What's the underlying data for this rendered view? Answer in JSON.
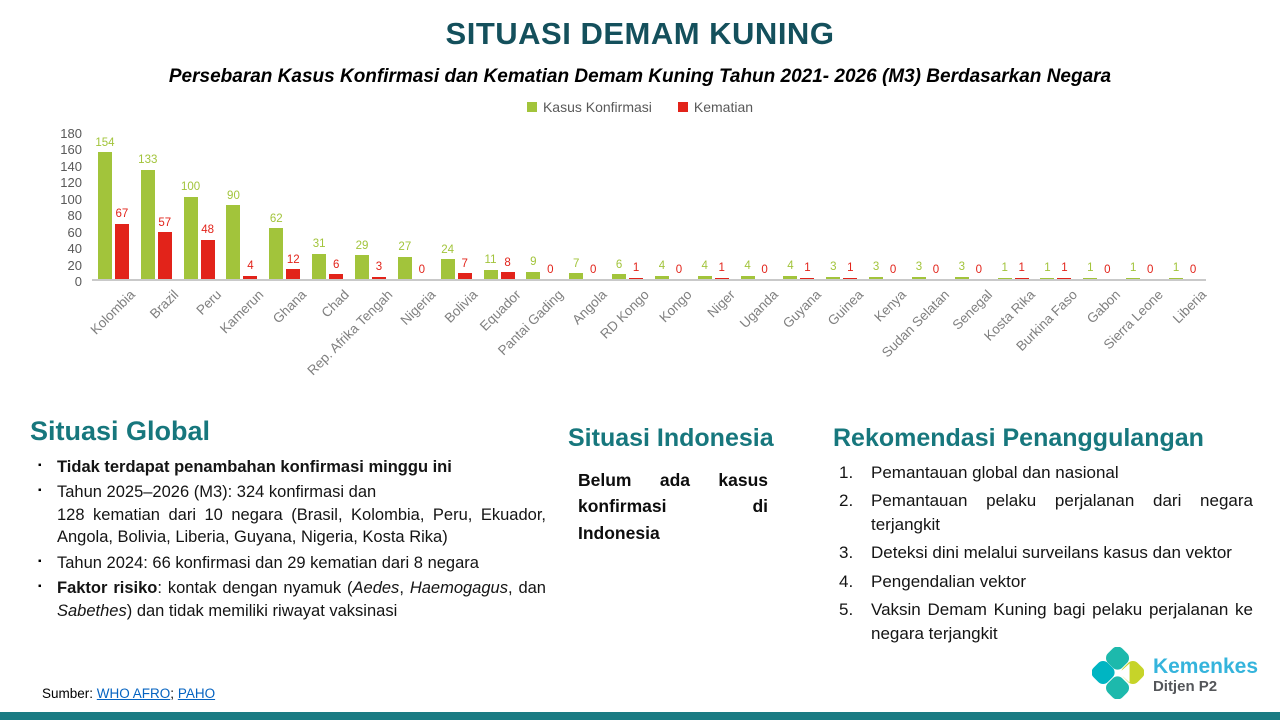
{
  "slide": {
    "title": "SITUASI DEMAM KUNING",
    "subtitle": "Persebaran Kasus Konfirmasi dan Kematian Demam Kuning Tahun 2021- 2026 (M3) Berdasarkan Negara"
  },
  "chart_data": {
    "type": "bar",
    "title": "Persebaran Kasus Konfirmasi dan Kematian Demam Kuning Tahun 2021- 2026 (M3) Berdasarkan Negara",
    "categories": [
      "Kolombia",
      "Brazil",
      "Peru",
      "Kamerun",
      "Ghana",
      "Chad",
      "Rep. Afrika Tengah",
      "Nigeria",
      "Bolivia",
      "Equador",
      "Pantai Gading",
      "Angola",
      "RD Kongo",
      "Kongo",
      "Niger",
      "Uganda",
      "Guyana",
      "Guinea",
      "Kenya",
      "Sudan Selatan",
      "Senegal",
      "Kosta Rika",
      "Burkina Faso",
      "Gabon",
      "Sierra Leone",
      "Liberia"
    ],
    "series": [
      {
        "name": "Kasus Konfirmasi",
        "color": "#a2c43b",
        "values": [
          154,
          133,
          100,
          90,
          62,
          31,
          29,
          27,
          24,
          11,
          9,
          7,
          6,
          4,
          4,
          4,
          4,
          3,
          3,
          3,
          3,
          1,
          1,
          1,
          1,
          1
        ]
      },
      {
        "name": "Kematian",
        "color": "#e2231a",
        "values": [
          67,
          57,
          48,
          4,
          12,
          6,
          3,
          0,
          7,
          8,
          0,
          0,
          1,
          0,
          1,
          0,
          1,
          1,
          0,
          0,
          0,
          1,
          1,
          0,
          0,
          0
        ]
      }
    ],
    "xlabel": "",
    "ylabel": "",
    "ylim": [
      0,
      180
    ],
    "yticks": [
      0,
      20,
      40,
      60,
      80,
      100,
      120,
      140,
      160,
      180
    ],
    "grid": false,
    "legend_position": "top"
  },
  "sections": {
    "global": {
      "heading": "Situasi Global",
      "bullet_char": "▪",
      "bullets": [
        [
          {
            "t": "Tidak terdapat penambahan konfirmasi minggu ini",
            "b": true
          }
        ],
        [
          {
            "t": "Tahun 2025–2026 (M3): 324 konfirmasi dan\n128 kematian dari 10 negara (Brasil, Kolombia, Peru, Ekuador, Angola, Bolivia, Liberia, Guyana, Nigeria, Kosta Rika)"
          }
        ],
        [
          {
            "t": "Tahun 2024: 66 konfirmasi dan 29 kematian dari 8 negara"
          }
        ],
        [
          {
            "t": "Faktor risiko",
            "b": true
          },
          {
            "t": ": kontak dengan nyamuk ("
          },
          {
            "t": "Aedes",
            "i": true
          },
          {
            "t": ", "
          },
          {
            "t": "Haemogagus",
            "i": true
          },
          {
            "t": ", dan "
          },
          {
            "t": "Sabethes",
            "i": true
          },
          {
            "t": ") dan tidak memiliki riwayat vaksinasi"
          }
        ]
      ]
    },
    "indonesia": {
      "heading": "Situasi Indonesia",
      "body": "Belum ada kasus konfirmasi di Indonesia"
    },
    "rekomendasi": {
      "heading": "Rekomendasi Penanggulangan",
      "items": [
        "Pemantauan global dan nasional",
        "Pemantauan pelaku perjalanan dari negara terjangkit",
        "Deteksi dini melalui surveilans kasus dan vektor",
        "Pengendalian vektor",
        "Vaksin Demam Kuning bagi pelaku perjalanan ke negara terjangkit"
      ]
    }
  },
  "source": {
    "label": "Sumber:",
    "links": [
      "WHO AFRO",
      "PAHO"
    ],
    "separator": ";"
  },
  "logo": {
    "name": "Kemenkes",
    "sub": "Ditjen P2"
  },
  "colors": {
    "title_teal": "#14505c",
    "heading_teal": "#17777d",
    "bar_green": "#a2c43b",
    "bar_red": "#e2231a",
    "axis_gray": "#595959",
    "label_gray": "#7f7f7f",
    "link_blue": "#0563c1",
    "footer_teal": "#1a7b83",
    "logo_cyan": "#35b4dc",
    "logo_teal": "#1db9ac",
    "logo_lime": "#c6d429"
  }
}
